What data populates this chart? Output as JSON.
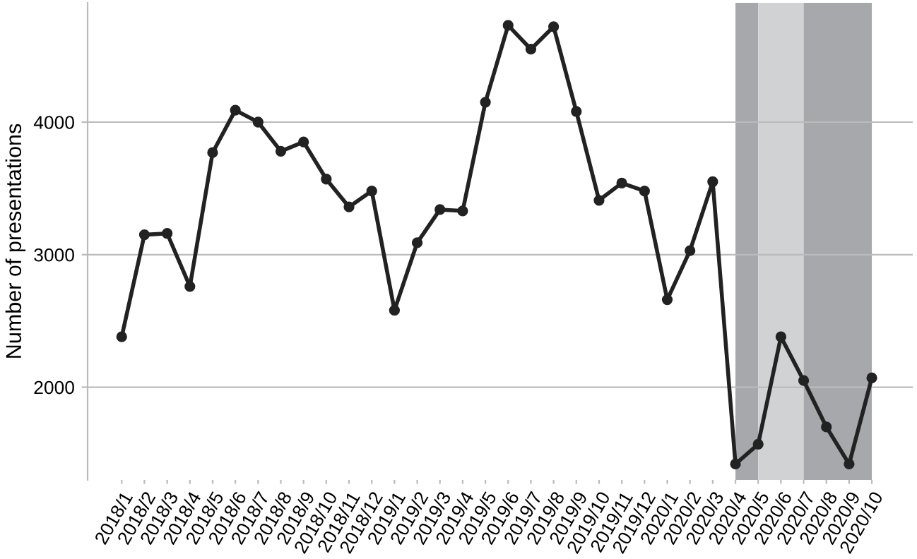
{
  "chart_data": {
    "type": "line",
    "ylabel": "Number of presentations",
    "categories": [
      "2018/1",
      "2018/2",
      "2018/3",
      "2018/4",
      "2018/5",
      "2018/6",
      "2018/7",
      "2018/8",
      "2018/9",
      "2018/10",
      "2018/11",
      "2018/12",
      "2019/1",
      "2019/2",
      "2019/3",
      "2019/4",
      "2019/5",
      "2019/6",
      "2019/7",
      "2019/8",
      "2019/9",
      "2019/10",
      "2019/11",
      "2019/12",
      "2020/1",
      "2020/2",
      "2020/3",
      "2020/4",
      "2020/5",
      "2020/6",
      "2020/7",
      "2020/8",
      "2020/9",
      "2020/10"
    ],
    "series": [
      {
        "color": "#222222",
        "values": [
          2380,
          3150,
          3160,
          2760,
          3770,
          4090,
          4000,
          3780,
          3850,
          3570,
          3360,
          3480,
          2580,
          3090,
          3340,
          3330,
          4150,
          4730,
          4550,
          4720,
          4080,
          3410,
          3540,
          3480,
          2660,
          3030,
          3550,
          1420,
          1570,
          2380,
          2050,
          1700,
          1420,
          2070
        ]
      }
    ],
    "ylim": [
      1300,
      4900
    ],
    "yticks": [
      2000,
      3000,
      4000
    ],
    "grid": "y",
    "marker": "circle",
    "line_style": "solid",
    "legend": false,
    "bands": [
      {
        "axis": "x",
        "from": "2020/4",
        "to": "2020/5",
        "color": "#a7a8ab"
      },
      {
        "axis": "x",
        "from": "2020/5",
        "to": "2020/7",
        "color": "#d1d2d4"
      },
      {
        "axis": "x",
        "from": "2020/7",
        "to": "2020/10",
        "color": "#a7a8ab"
      }
    ]
  }
}
